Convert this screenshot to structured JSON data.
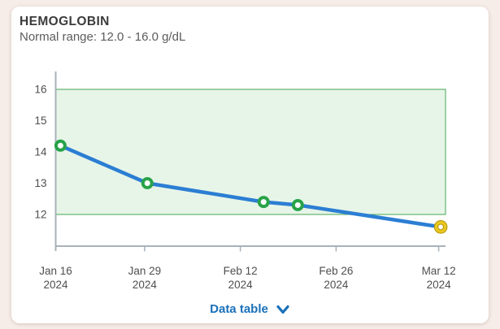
{
  "card": {
    "title": "HEMOGLOBIN",
    "subtitle": "Normal range: 12.0 - 16.0 g/dL",
    "footer": {
      "data_table_label": "Data table"
    }
  },
  "colors": {
    "page_bg": "#f7ede8",
    "card_bg": "#ffffff",
    "title_text": "#3b3b3b",
    "subtitle_text": "#5c5c5c",
    "tick_text": "#4f4f4f",
    "axis_line": "#a7b2ba",
    "band_fill": "#e7f5e8",
    "band_border": "#62b56d",
    "line": "#2b7ed3",
    "marker_in_range": "#27a348",
    "marker_fill": "#ffffff",
    "marker_out_ring": "#e9c71f",
    "marker_out_edge": "#b89a10",
    "link": "#1a70ba"
  },
  "chart_data": {
    "type": "line",
    "title": "HEMOGLOBIN",
    "unit": "g/dL",
    "normal_range_min": 12.0,
    "normal_range_max": 16.0,
    "y_ticks": [
      16,
      15,
      14,
      13,
      12
    ],
    "ylim": [
      11.0,
      16.6
    ],
    "xlim_days": [
      0,
      57
    ],
    "grid": false,
    "legend": false,
    "x_ticks": [
      {
        "line1": "Jan 16",
        "line2": "2024",
        "day": 0
      },
      {
        "line1": "Jan 29",
        "line2": "2024",
        "day": 13
      },
      {
        "line1": "Feb 12",
        "line2": "2024",
        "day": 27
      },
      {
        "line1": "Feb 26",
        "line2": "2024",
        "day": 41
      },
      {
        "line1": "Mar 12",
        "line2": "2024",
        "day": 56
      }
    ],
    "points": [
      {
        "date": "Jan 16, 2024",
        "day": 0.7,
        "value": 14.2,
        "status": "in-range"
      },
      {
        "date": "Jan 29, 2024",
        "day": 13.4,
        "value": 13.0,
        "status": "in-range"
      },
      {
        "date": "Feb 15, 2024",
        "day": 30.4,
        "value": 12.4,
        "status": "in-range"
      },
      {
        "date": "Feb 20, 2024",
        "day": 35.4,
        "value": 12.3,
        "status": "in-range"
      },
      {
        "date": "Mar 12, 2024",
        "day": 56.3,
        "value": 11.6,
        "status": "below-range"
      }
    ]
  }
}
